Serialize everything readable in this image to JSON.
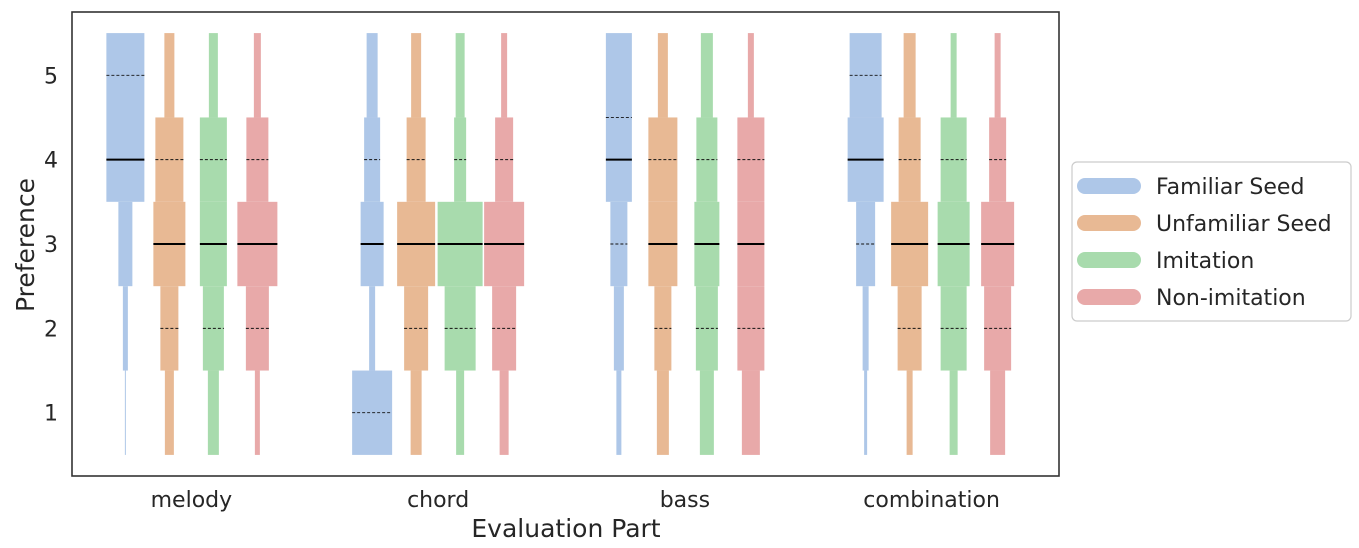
{
  "chart_data": {
    "type": "violin-like letter-value plot",
    "xlabel": "Evaluation Part",
    "ylabel": "Preference",
    "ylim": [
      0.25,
      5.75
    ],
    "yticks": [
      1,
      2,
      3,
      4,
      5
    ],
    "categories": [
      "melody",
      "chord",
      "bass",
      "combination"
    ],
    "legend_position": "center-right",
    "series": [
      {
        "name": "Familiar Seed",
        "color": "#aec7e8",
        "parts": [
          {
            "category": "melody",
            "median": 4,
            "quartiles": [
              5
            ],
            "bands": [
              {
                "low": 3.5,
                "high": 5.5,
                "weight": 38
              },
              {
                "low": 2.5,
                "high": 3.5,
                "weight": 14
              },
              {
                "low": 1.5,
                "high": 2.5,
                "weight": 5
              },
              {
                "low": 0.5,
                "high": 1.5,
                "weight": 1
              }
            ]
          },
          {
            "category": "chord",
            "median": 3,
            "quartiles": [
              4,
              1
            ],
            "bands": [
              {
                "low": 4.5,
                "high": 5.5,
                "weight": 11
              },
              {
                "low": 3.5,
                "high": 4.5,
                "weight": 16
              },
              {
                "low": 2.5,
                "high": 3.5,
                "weight": 23
              },
              {
                "low": 1.5,
                "high": 2.5,
                "weight": 6
              },
              {
                "low": 0.5,
                "high": 1.5,
                "weight": 40
              }
            ]
          },
          {
            "category": "bass",
            "median": 4,
            "quartiles": [
              4.5,
              3
            ],
            "bands": [
              {
                "low": 3.5,
                "high": 5.5,
                "weight": 26
              },
              {
                "low": 2.5,
                "high": 3.5,
                "weight": 17
              },
              {
                "low": 1.5,
                "high": 2.5,
                "weight": 10
              },
              {
                "low": 0.5,
                "high": 1.5,
                "weight": 5
              }
            ]
          },
          {
            "category": "combination",
            "median": 4,
            "quartiles": [
              5,
              3
            ],
            "bands": [
              {
                "low": 4.5,
                "high": 5.5,
                "weight": 32
              },
              {
                "low": 3.5,
                "high": 4.5,
                "weight": 36
              },
              {
                "low": 2.5,
                "high": 3.5,
                "weight": 19
              },
              {
                "low": 1.5,
                "high": 2.5,
                "weight": 6
              },
              {
                "low": 0.5,
                "high": 1.5,
                "weight": 3
              }
            ]
          }
        ]
      },
      {
        "name": "Unfamiliar Seed",
        "color": "#e8b994",
        "parts": [
          {
            "category": "melody",
            "median": 3,
            "quartiles": [
              4,
              2
            ],
            "bands": [
              {
                "low": 4.5,
                "high": 5.5,
                "weight": 10
              },
              {
                "low": 3.5,
                "high": 4.5,
                "weight": 28
              },
              {
                "low": 2.5,
                "high": 3.5,
                "weight": 32
              },
              {
                "low": 1.5,
                "high": 2.5,
                "weight": 18
              },
              {
                "low": 0.5,
                "high": 1.5,
                "weight": 9
              }
            ]
          },
          {
            "category": "chord",
            "median": 3,
            "quartiles": [
              4,
              2
            ],
            "bands": [
              {
                "low": 4.5,
                "high": 5.5,
                "weight": 10
              },
              {
                "low": 3.5,
                "high": 4.5,
                "weight": 19
              },
              {
                "low": 2.5,
                "high": 3.5,
                "weight": 38
              },
              {
                "low": 1.5,
                "high": 2.5,
                "weight": 24
              },
              {
                "low": 0.5,
                "high": 1.5,
                "weight": 11
              }
            ]
          },
          {
            "category": "bass",
            "median": 3,
            "quartiles": [
              4,
              2
            ],
            "bands": [
              {
                "low": 4.5,
                "high": 5.5,
                "weight": 10
              },
              {
                "low": 3.5,
                "high": 4.5,
                "weight": 29
              },
              {
                "low": 2.5,
                "high": 3.5,
                "weight": 29
              },
              {
                "low": 1.5,
                "high": 2.5,
                "weight": 17
              },
              {
                "low": 0.5,
                "high": 1.5,
                "weight": 12
              }
            ]
          },
          {
            "category": "combination",
            "median": 3,
            "quartiles": [
              4,
              2
            ],
            "bands": [
              {
                "low": 4.5,
                "high": 5.5,
                "weight": 12
              },
              {
                "low": 3.5,
                "high": 4.5,
                "weight": 22
              },
              {
                "low": 2.5,
                "high": 3.5,
                "weight": 37
              },
              {
                "low": 1.5,
                "high": 2.5,
                "weight": 24
              },
              {
                "low": 0.5,
                "high": 1.5,
                "weight": 6
              }
            ]
          }
        ]
      },
      {
        "name": "Imitation",
        "color": "#a8dbad",
        "parts": [
          {
            "category": "melody",
            "median": 3,
            "quartiles": [
              4,
              2
            ],
            "bands": [
              {
                "low": 4.5,
                "high": 5.5,
                "weight": 9
              },
              {
                "low": 3.5,
                "high": 4.5,
                "weight": 27
              },
              {
                "low": 2.5,
                "high": 3.5,
                "weight": 27
              },
              {
                "low": 1.5,
                "high": 2.5,
                "weight": 21
              },
              {
                "low": 0.5,
                "high": 1.5,
                "weight": 11
              }
            ]
          },
          {
            "category": "chord",
            "median": 3,
            "quartiles": [
              4,
              2
            ],
            "bands": [
              {
                "low": 4.5,
                "high": 5.5,
                "weight": 9
              },
              {
                "low": 3.5,
                "high": 4.5,
                "weight": 12
              },
              {
                "low": 2.5,
                "high": 3.5,
                "weight": 45
              },
              {
                "low": 1.5,
                "high": 2.5,
                "weight": 31
              },
              {
                "low": 0.5,
                "high": 1.5,
                "weight": 8
              }
            ]
          },
          {
            "category": "bass",
            "median": 3,
            "quartiles": [
              4,
              2
            ],
            "bands": [
              {
                "low": 4.5,
                "high": 5.5,
                "weight": 12
              },
              {
                "low": 3.5,
                "high": 4.5,
                "weight": 21
              },
              {
                "low": 2.5,
                "high": 3.5,
                "weight": 25
              },
              {
                "low": 1.5,
                "high": 2.5,
                "weight": 22
              },
              {
                "low": 0.5,
                "high": 1.5,
                "weight": 14
              }
            ]
          },
          {
            "category": "combination",
            "median": 3,
            "quartiles": [
              4,
              2
            ],
            "bands": [
              {
                "low": 4.5,
                "high": 5.5,
                "weight": 6
              },
              {
                "low": 3.5,
                "high": 4.5,
                "weight": 26
              },
              {
                "low": 2.5,
                "high": 3.5,
                "weight": 32
              },
              {
                "low": 1.5,
                "high": 2.5,
                "weight": 26
              },
              {
                "low": 0.5,
                "high": 1.5,
                "weight": 8
              }
            ]
          }
        ]
      },
      {
        "name": "Non-imitation",
        "color": "#e8a9a9",
        "parts": [
          {
            "category": "melody",
            "median": 3,
            "quartiles": [
              4,
              2
            ],
            "bands": [
              {
                "low": 4.5,
                "high": 5.5,
                "weight": 7
              },
              {
                "low": 3.5,
                "high": 4.5,
                "weight": 22
              },
              {
                "low": 2.5,
                "high": 3.5,
                "weight": 40
              },
              {
                "low": 1.5,
                "high": 2.5,
                "weight": 23
              },
              {
                "low": 0.5,
                "high": 1.5,
                "weight": 5
              }
            ]
          },
          {
            "category": "chord",
            "median": 3,
            "quartiles": [
              4,
              2
            ],
            "bands": [
              {
                "low": 4.5,
                "high": 5.5,
                "weight": 6
              },
              {
                "low": 3.5,
                "high": 4.5,
                "weight": 18
              },
              {
                "low": 2.5,
                "high": 3.5,
                "weight": 40
              },
              {
                "low": 1.5,
                "high": 2.5,
                "weight": 24
              },
              {
                "low": 0.5,
                "high": 1.5,
                "weight": 9
              }
            ]
          },
          {
            "category": "bass",
            "median": 3,
            "quartiles": [
              4,
              2
            ],
            "bands": [
              {
                "low": 4.5,
                "high": 5.5,
                "weight": 6
              },
              {
                "low": 3.5,
                "high": 4.5,
                "weight": 27
              },
              {
                "low": 2.5,
                "high": 3.5,
                "weight": 27
              },
              {
                "low": 1.5,
                "high": 2.5,
                "weight": 27
              },
              {
                "low": 0.5,
                "high": 1.5,
                "weight": 18
              }
            ]
          },
          {
            "category": "combination",
            "median": 3,
            "quartiles": [
              4,
              2
            ],
            "bands": [
              {
                "low": 4.5,
                "high": 5.5,
                "weight": 6
              },
              {
                "low": 3.5,
                "high": 4.5,
                "weight": 17
              },
              {
                "low": 2.5,
                "high": 3.5,
                "weight": 33
              },
              {
                "low": 1.5,
                "high": 2.5,
                "weight": 27
              },
              {
                "low": 0.5,
                "high": 1.5,
                "weight": 15
              }
            ]
          }
        ]
      }
    ]
  }
}
